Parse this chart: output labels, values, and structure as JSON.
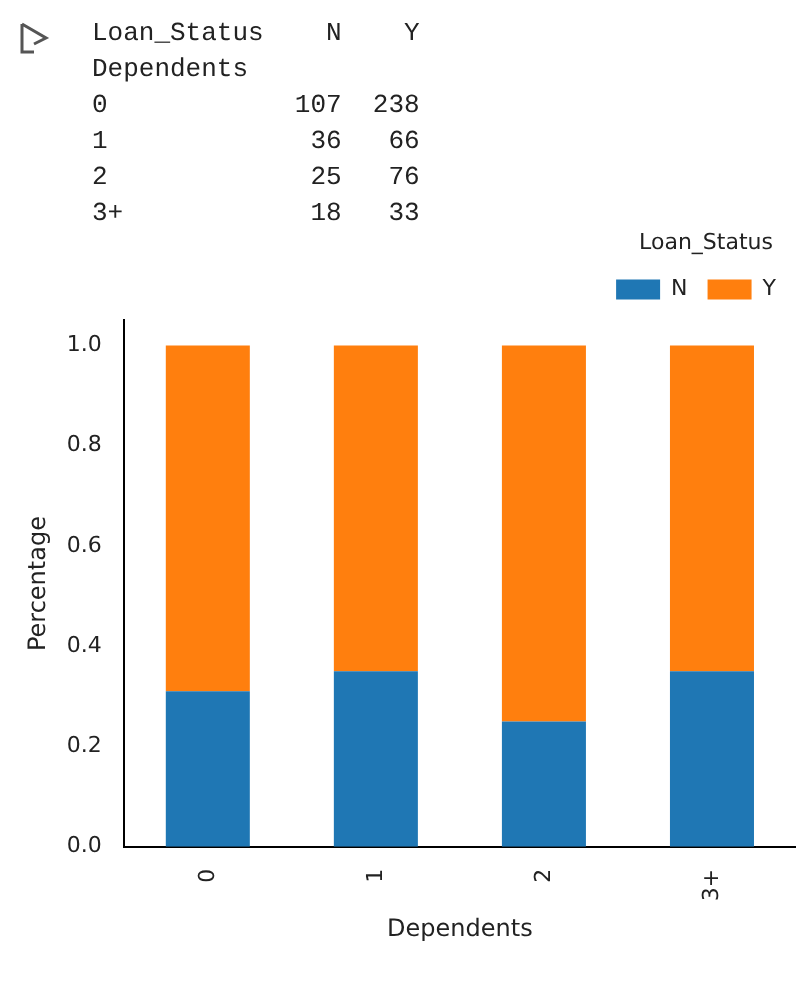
{
  "chart_data": {
    "type": "bar",
    "stacked": true,
    "xlabel": "Dependents",
    "ylabel": "Percentage",
    "legend_title": "Loan_Status",
    "legend": "top right",
    "grid": false,
    "annotations": [
      "Loan_Status    N    Y",
      "Dependents",
      "0            107  238",
      "1             36   66",
      "2             25   76",
      "3+            18   33"
    ],
    "categories": [
      "0",
      "1",
      "2",
      "3+"
    ],
    "series": [
      {
        "name": "N",
        "color": "#1f77b4",
        "values": [
          0.31,
          0.35,
          0.25,
          0.35
        ]
      },
      {
        "name": "Y",
        "color": "#ff7f0e",
        "values": [
          0.69,
          0.65,
          0.75,
          0.65
        ]
      }
    ],
    "ylim": [
      0,
      1.05
    ],
    "yticks": [
      {
        "value": 0,
        "label": "0.0"
      },
      {
        "value": 0.2,
        "label": "0.2"
      },
      {
        "value": 0.4,
        "label": "0.4"
      },
      {
        "value": 0.6,
        "label": "0.6"
      },
      {
        "value": 0.8,
        "label": "0.8"
      },
      {
        "value": 1,
        "label": "1.0"
      }
    ]
  }
}
